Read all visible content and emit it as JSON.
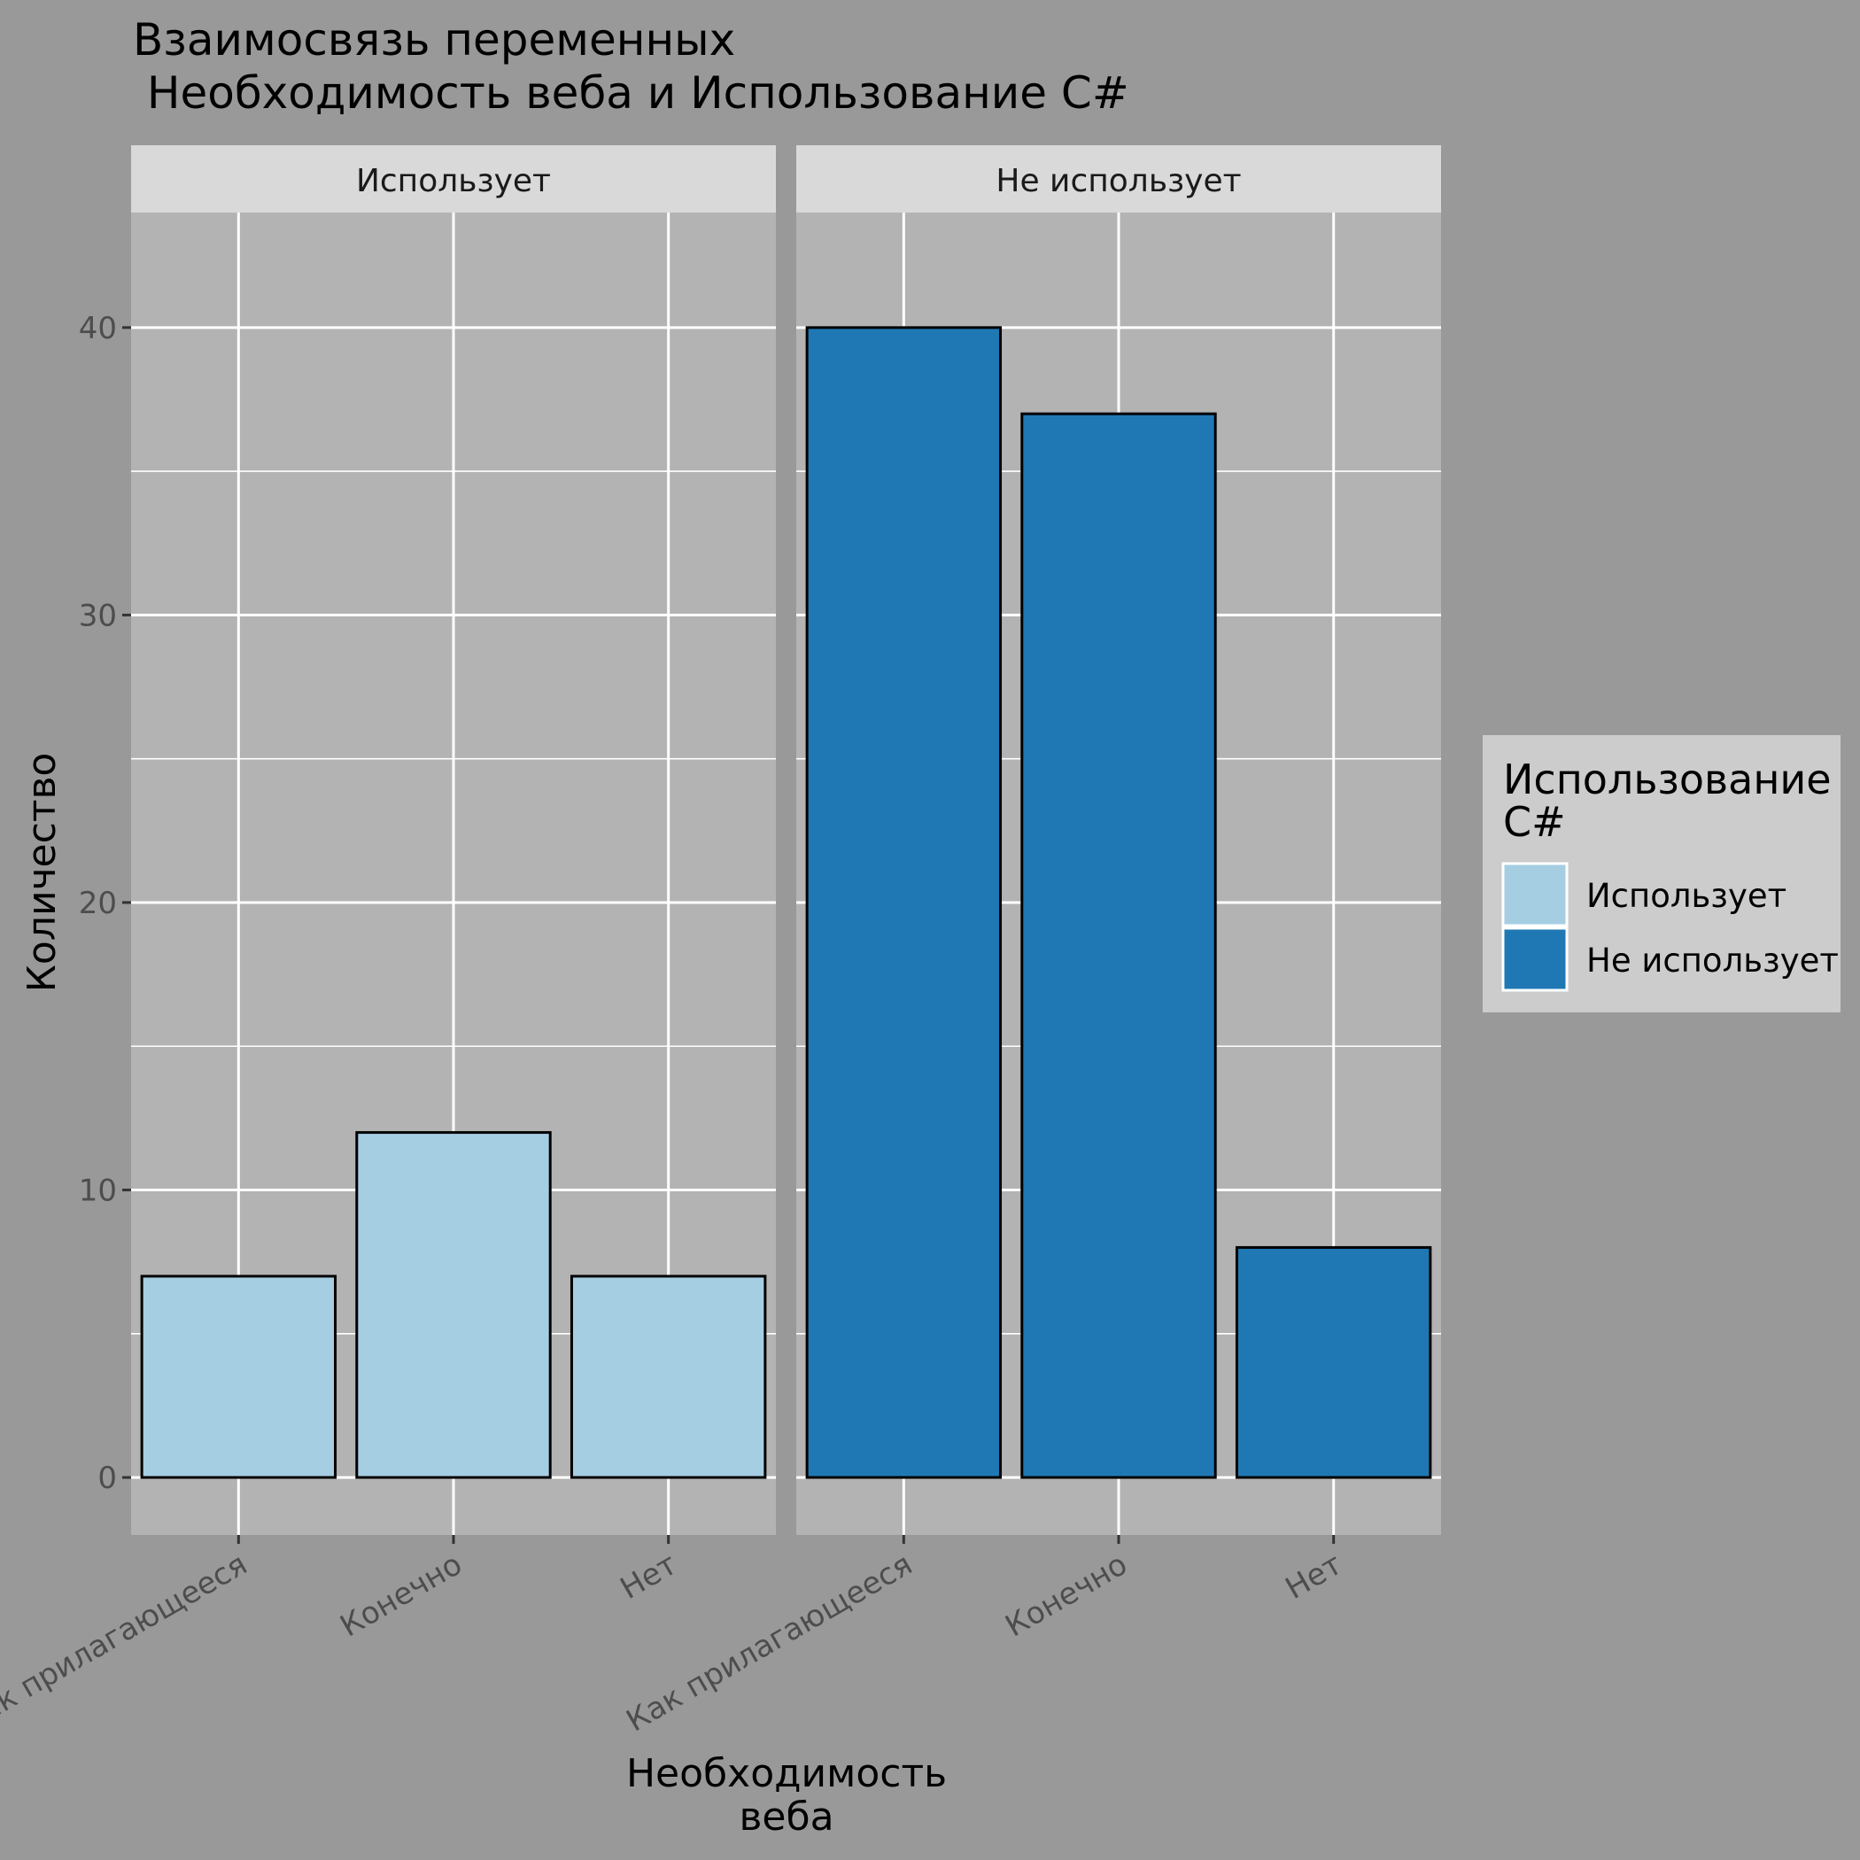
{
  "chart_data": {
    "type": "bar",
    "title_line1": "Взаимосвязь переменных",
    "title_line2": " Необходимость веба и Использование C#",
    "xlabel_line1": "Необходимость",
    "xlabel_line2": "веба",
    "ylabel": "Количество",
    "ylim": [
      -2,
      44
    ],
    "y_ticks": [
      0,
      10,
      20,
      30,
      40
    ],
    "categories": [
      "Как прилагающееся",
      "Конечно",
      "Нет"
    ],
    "facets": [
      {
        "name": "Использует",
        "values": [
          7,
          12,
          7
        ],
        "color": "#a6cee3"
      },
      {
        "name": "Не использует",
        "values": [
          40,
          37,
          8
        ],
        "color": "#1f78b4"
      }
    ],
    "legend": {
      "title_line1": "Использование",
      "title_line2": "C#",
      "position": "right",
      "items": [
        {
          "label": "Использует",
          "color": "#a6cee3"
        },
        {
          "label": "Не использует",
          "color": "#1f78b4"
        }
      ]
    },
    "grid": true,
    "colors": {
      "background": "#999999",
      "panel": "#b3b3b3",
      "strip": "#d9d9d9",
      "grid": "#ffffff",
      "bar_border": "#000000",
      "legend_bg": "#cccccc"
    }
  }
}
